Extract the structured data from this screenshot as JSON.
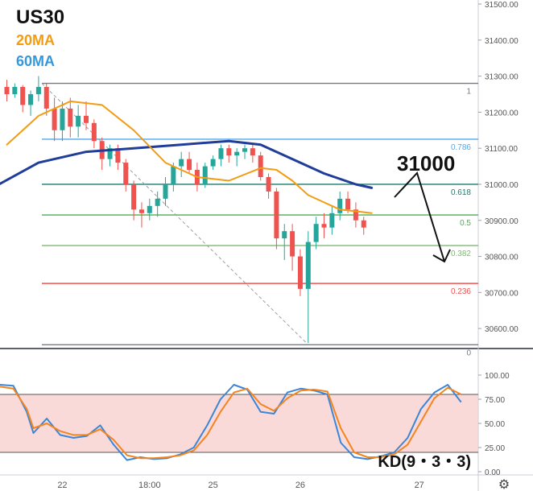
{
  "chart_data": [
    {
      "type": "candlestick",
      "symbol": "US30",
      "legend": [
        {
          "label": "US30",
          "color": "#111111"
        },
        {
          "label": "20MA",
          "color": "#f39c12"
        },
        {
          "label": "60MA",
          "color": "#3498db"
        }
      ],
      "ylim": [
        30540,
        31500
      ],
      "y_ticks": [
        "30600.00",
        "30700.00",
        "30800.00",
        "30900.00",
        "31000.00",
        "31100.00",
        "31200.00",
        "31300.00",
        "31400.00",
        "31500.00"
      ],
      "x_ticks": [
        {
          "label": "22",
          "bar": 7
        },
        {
          "label": "18:00",
          "bar": 18
        },
        {
          "label": "25",
          "bar": 26
        },
        {
          "label": "26",
          "bar": 37
        },
        {
          "label": "27",
          "bar": 52
        }
      ],
      "bars_total": 54,
      "candles": [
        [
          31270,
          31290,
          31230,
          31250
        ],
        [
          31250,
          31280,
          31240,
          31270
        ],
        [
          31270,
          31275,
          31200,
          31220
        ],
        [
          31220,
          31260,
          31190,
          31250
        ],
        [
          31250,
          31300,
          31230,
          31270
        ],
        [
          31270,
          31280,
          31190,
          31210
        ],
        [
          31210,
          31240,
          31120,
          31150
        ],
        [
          31150,
          31230,
          31120,
          31210
        ],
        [
          31210,
          31240,
          31130,
          31160
        ],
        [
          31160,
          31220,
          31130,
          31190
        ],
        [
          31190,
          31230,
          31150,
          31170
        ],
        [
          31170,
          31180,
          31100,
          31120
        ],
        [
          31120,
          31130,
          31040,
          31070
        ],
        [
          31070,
          31110,
          31050,
          31100
        ],
        [
          31100,
          31110,
          31040,
          31060
        ],
        [
          31060,
          31070,
          30980,
          31000
        ],
        [
          31000,
          31010,
          30900,
          30930
        ],
        [
          30930,
          30950,
          30880,
          30920
        ],
        [
          30920,
          30960,
          30900,
          30940
        ],
        [
          30940,
          30980,
          30910,
          30960
        ],
        [
          30960,
          31020,
          30940,
          31000
        ],
        [
          31000,
          31060,
          30980,
          31050
        ],
        [
          31050,
          31090,
          31020,
          31070
        ],
        [
          31070,
          31090,
          31030,
          31040
        ],
        [
          31040,
          31060,
          30980,
          31000
        ],
        [
          31000,
          31060,
          30990,
          31050
        ],
        [
          31050,
          31080,
          31040,
          31070
        ],
        [
          31070,
          31110,
          31050,
          31100
        ],
        [
          31100,
          31110,
          31060,
          31080
        ],
        [
          31080,
          31100,
          31050,
          31090
        ],
        [
          31090,
          31110,
          31070,
          31100
        ],
        [
          31100,
          31110,
          31060,
          31080
        ],
        [
          31080,
          31090,
          31010,
          31020
        ],
        [
          31020,
          31030,
          30960,
          30980
        ],
        [
          30980,
          30990,
          30820,
          30850
        ],
        [
          30850,
          30890,
          30790,
          30870
        ],
        [
          30870,
          30890,
          30760,
          30800
        ],
        [
          30800,
          30820,
          30690,
          30710
        ],
        [
          30710,
          30870,
          30560,
          30840
        ],
        [
          30840,
          30910,
          30820,
          30890
        ],
        [
          30890,
          30920,
          30850,
          30880
        ],
        [
          30880,
          30940,
          30860,
          30920
        ],
        [
          30920,
          30980,
          30900,
          30960
        ],
        [
          30960,
          30980,
          30920,
          30930
        ],
        [
          30930,
          30950,
          30880,
          30900
        ],
        [
          30900,
          30910,
          30860,
          30880
        ]
      ],
      "ma20": [
        [
          0,
          31110
        ],
        [
          4,
          31190
        ],
        [
          8,
          31230
        ],
        [
          12,
          31220
        ],
        [
          16,
          31150
        ],
        [
          20,
          31060
        ],
        [
          24,
          31020
        ],
        [
          28,
          31010
        ],
        [
          32,
          31045
        ],
        [
          34,
          31040
        ],
        [
          36,
          31010
        ],
        [
          38,
          30970
        ],
        [
          40,
          30950
        ],
        [
          42,
          30930
        ],
        [
          46,
          30920
        ]
      ],
      "ma60": [
        [
          -1,
          31000
        ],
        [
          4,
          31060
        ],
        [
          10,
          31090
        ],
        [
          16,
          31100
        ],
        [
          22,
          31110
        ],
        [
          28,
          31120
        ],
        [
          32,
          31110
        ],
        [
          36,
          31070
        ],
        [
          40,
          31030
        ],
        [
          44,
          31000
        ],
        [
          46,
          30990
        ]
      ],
      "fib_levels": [
        {
          "label": "1",
          "value": 31280,
          "color": "#787b86"
        },
        {
          "label": "0.786",
          "value": 31125,
          "color": "#55a7e7"
        },
        {
          "label": "0.618",
          "value": 31000,
          "color": "#1b7a6f"
        },
        {
          "label": "0.5",
          "value": 30915,
          "color": "#4caf50"
        },
        {
          "label": "0.382",
          "value": 30830,
          "color": "#7cba6f"
        },
        {
          "label": "0.236",
          "value": 30725,
          "color": "#ef5350"
        },
        {
          "label": "0",
          "value": 30555,
          "color": "#787b86"
        }
      ],
      "annotations": [
        {
          "text": "31000"
        }
      ]
    },
    {
      "type": "line",
      "title": "KD(9・3・3)",
      "ylim": [
        0,
        100
      ],
      "y_ticks": [
        "0.00",
        "25.00",
        "50.00",
        "75.00",
        "100.00"
      ],
      "overbought": 80,
      "oversold": 20,
      "series": [
        {
          "values": [
            [
              -1,
              90
            ],
            [
              1,
              89
            ],
            [
              3,
              62
            ],
            [
              4,
              40
            ],
            [
              6,
              55
            ],
            [
              8,
              38
            ],
            [
              10,
              35
            ],
            [
              12,
              37
            ],
            [
              14,
              48
            ],
            [
              16,
              28
            ],
            [
              18,
              12
            ],
            [
              20,
              15
            ],
            [
              22,
              13
            ],
            [
              24,
              14
            ],
            [
              26,
              18
            ],
            [
              28,
              25
            ],
            [
              30,
              48
            ],
            [
              32,
              75
            ],
            [
              34,
              90
            ],
            [
              36,
              85
            ],
            [
              38,
              62
            ],
            [
              40,
              60
            ],
            [
              42,
              82
            ],
            [
              44,
              86
            ],
            [
              46,
              84
            ],
            [
              48,
              80
            ],
            [
              50,
              30
            ],
            [
              52,
              15
            ],
            [
              54,
              13
            ],
            [
              56,
              16
            ],
            [
              58,
              20
            ],
            [
              60,
              35
            ],
            [
              62,
              65
            ],
            [
              64,
              82
            ],
            [
              66,
              90
            ],
            [
              68,
              72
            ]
          ]
        },
        {
          "values": [
            [
              -1,
              88
            ],
            [
              1,
              86
            ],
            [
              3,
              65
            ],
            [
              4,
              45
            ],
            [
              6,
              50
            ],
            [
              8,
              42
            ],
            [
              10,
              38
            ],
            [
              12,
              38
            ],
            [
              14,
              44
            ],
            [
              16,
              33
            ],
            [
              18,
              17
            ],
            [
              20,
              14
            ],
            [
              22,
              14
            ],
            [
              24,
              15
            ],
            [
              26,
              17
            ],
            [
              28,
              22
            ],
            [
              30,
              38
            ],
            [
              32,
              62
            ],
            [
              34,
              82
            ],
            [
              36,
              86
            ],
            [
              38,
              70
            ],
            [
              40,
              63
            ],
            [
              42,
              76
            ],
            [
              44,
              84
            ],
            [
              46,
              85
            ],
            [
              48,
              83
            ],
            [
              50,
              45
            ],
            [
              52,
              20
            ],
            [
              54,
              15
            ],
            [
              56,
              15
            ],
            [
              58,
              18
            ],
            [
              60,
              28
            ],
            [
              62,
              52
            ],
            [
              64,
              76
            ],
            [
              66,
              87
            ],
            [
              68,
              80
            ]
          ]
        }
      ]
    }
  ]
}
